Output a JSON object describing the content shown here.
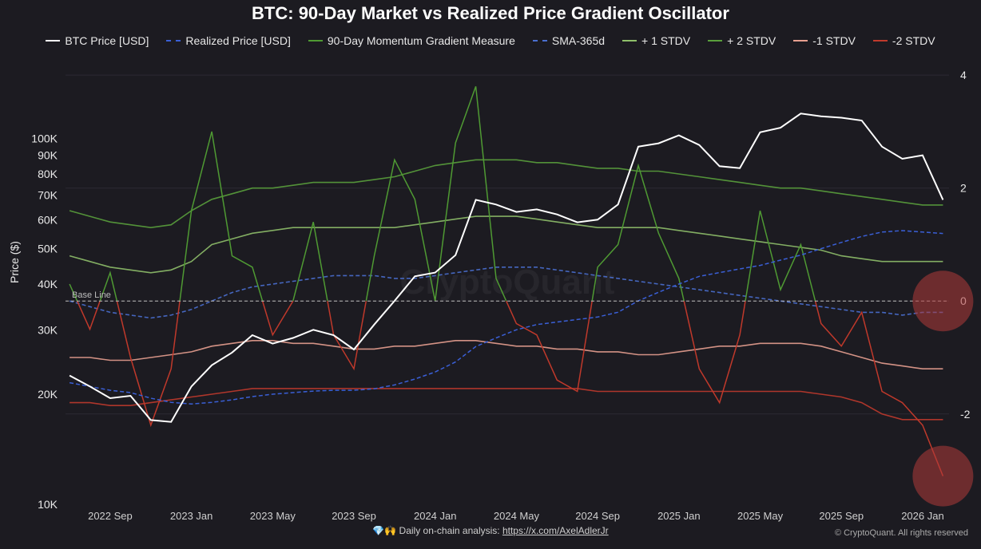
{
  "title": "BTC: 90-Day Market vs Realized Price Gradient Oscillator",
  "ylabel_left": "Price ($)",
  "baseline_label": "Base Line",
  "watermark": "CryptoQuant",
  "footer": {
    "prefix": "💎🙌 Daily on-chain analysis: ",
    "link": "https://x.com/AxelAdlerJr"
  },
  "copyright": "© CryptoQuant. All rights reserved",
  "colors": {
    "background": "#1c1b21",
    "btc": "#ffffff",
    "realized": "#3a5fd6",
    "momentum_pos": "#4f9a33",
    "momentum_neg": "#c0392b",
    "sma": "#4a6fd0",
    "plus1": "#8fbf6a",
    "plus2": "#5aa03c",
    "minus1": "#e8a090",
    "minus2": "#c03a2c",
    "highlight": "#b03a3a"
  },
  "chart_data": {
    "type": "line",
    "x_ticks": [
      "2022 Sep",
      "2023 Jan",
      "2023 May",
      "2023 Sep",
      "2024 Jan",
      "2024 May",
      "2024 Sep",
      "2025 Jan",
      "2025 May",
      "2025 Sep",
      "2026 Jan"
    ],
    "y_left": {
      "scale": "log",
      "range": [
        10000,
        160000
      ],
      "ticks": [
        "10K",
        "20K",
        "30K",
        "40K",
        "50K",
        "60K",
        "70K",
        "80K",
        "90K",
        "100K"
      ],
      "tick_values": [
        10000,
        20000,
        30000,
        40000,
        50000,
        60000,
        70000,
        80000,
        90000,
        100000
      ]
    },
    "y_right": {
      "range": [
        -3.6,
        4.2
      ],
      "ticks": [
        "4",
        "2",
        "0",
        "-2"
      ],
      "tick_values": [
        4,
        2,
        0,
        -2
      ]
    },
    "baseline_value": 0,
    "grid": true,
    "legend_position": "top",
    "months": [
      "2022-07",
      "2022-08",
      "2022-09",
      "2022-10",
      "2022-11",
      "2022-12",
      "2023-01",
      "2023-02",
      "2023-03",
      "2023-04",
      "2023-05",
      "2023-06",
      "2023-07",
      "2023-08",
      "2023-09",
      "2023-10",
      "2023-11",
      "2023-12",
      "2024-01",
      "2024-02",
      "2024-03",
      "2024-04",
      "2024-05",
      "2024-06",
      "2024-07",
      "2024-08",
      "2024-09",
      "2024-10",
      "2024-11",
      "2024-12",
      "2025-01",
      "2025-02",
      "2025-03",
      "2025-04",
      "2025-05",
      "2025-06",
      "2025-07",
      "2025-08",
      "2025-09",
      "2025-10",
      "2025-11",
      "2025-12",
      "2026-01",
      "2026-02"
    ],
    "series": [
      {
        "name": "BTC Price [USD]",
        "axis": "left",
        "style": "solid",
        "values": [
          22500,
          21000,
          19500,
          19800,
          17000,
          16800,
          21000,
          24000,
          26000,
          29000,
          27500,
          28500,
          30000,
          29000,
          26500,
          31000,
          36000,
          42000,
          43000,
          48000,
          68000,
          66000,
          63000,
          64000,
          62000,
          59000,
          60000,
          66000,
          95000,
          97000,
          102000,
          96000,
          84000,
          83000,
          104000,
          107000,
          117000,
          115000,
          114000,
          112000,
          95000,
          88000,
          90000,
          68000
        ]
      },
      {
        "name": "Realized Price [USD]",
        "axis": "left",
        "style": "dashed",
        "values": [
          21500,
          21000,
          20500,
          20200,
          19500,
          19000,
          18800,
          19000,
          19300,
          19700,
          20000,
          20200,
          20400,
          20500,
          20500,
          20700,
          21200,
          22000,
          23000,
          24500,
          27000,
          28500,
          30000,
          31000,
          31500,
          32000,
          32500,
          33500,
          36000,
          38000,
          40000,
          42000,
          43000,
          44000,
          45000,
          46500,
          48000,
          50000,
          52000,
          54000,
          55500,
          56000,
          55500,
          55000
        ]
      },
      {
        "name": "90-Day Momentum Gradient Measure",
        "axis": "right",
        "style": "solid",
        "values": [
          0.3,
          -0.5,
          0.5,
          -1.0,
          -2.2,
          -1.2,
          1.6,
          3.0,
          0.8,
          0.6,
          -0.6,
          0.0,
          1.4,
          -0.6,
          -1.2,
          0.8,
          2.5,
          1.8,
          0.0,
          2.8,
          3.8,
          0.4,
          -0.4,
          -0.6,
          -1.4,
          -1.6,
          0.6,
          1.0,
          2.4,
          1.2,
          0.4,
          -1.2,
          -1.8,
          -0.6,
          1.6,
          0.2,
          1.0,
          -0.4,
          -0.8,
          -0.2,
          -1.6,
          -1.8,
          -2.2,
          -3.1
        ]
      },
      {
        "name": "SMA-365d",
        "axis": "right",
        "style": "dashed",
        "values": [
          0.0,
          -0.1,
          -0.2,
          -0.25,
          -0.3,
          -0.25,
          -0.15,
          0.0,
          0.15,
          0.25,
          0.3,
          0.35,
          0.4,
          0.45,
          0.45,
          0.45,
          0.4,
          0.4,
          0.45,
          0.5,
          0.55,
          0.6,
          0.6,
          0.6,
          0.55,
          0.5,
          0.45,
          0.4,
          0.35,
          0.3,
          0.25,
          0.2,
          0.15,
          0.1,
          0.05,
          0.0,
          -0.05,
          -0.1,
          -0.15,
          -0.2,
          -0.2,
          -0.25,
          -0.2,
          -0.2
        ]
      },
      {
        "name": "+ 1 STDV",
        "axis": "right",
        "style": "solid",
        "values": [
          0.8,
          0.7,
          0.6,
          0.55,
          0.5,
          0.55,
          0.7,
          1.0,
          1.1,
          1.2,
          1.25,
          1.3,
          1.3,
          1.3,
          1.3,
          1.3,
          1.3,
          1.35,
          1.4,
          1.45,
          1.5,
          1.5,
          1.5,
          1.45,
          1.4,
          1.35,
          1.3,
          1.3,
          1.3,
          1.3,
          1.25,
          1.2,
          1.15,
          1.1,
          1.05,
          1.0,
          0.95,
          0.9,
          0.8,
          0.75,
          0.7,
          0.7,
          0.7,
          0.7
        ]
      },
      {
        "name": "+ 2 STDV",
        "axis": "right",
        "style": "solid",
        "values": [
          1.6,
          1.5,
          1.4,
          1.35,
          1.3,
          1.35,
          1.6,
          1.8,
          1.9,
          2.0,
          2.0,
          2.05,
          2.1,
          2.1,
          2.1,
          2.15,
          2.2,
          2.3,
          2.4,
          2.45,
          2.5,
          2.5,
          2.5,
          2.45,
          2.45,
          2.4,
          2.35,
          2.35,
          2.3,
          2.3,
          2.25,
          2.2,
          2.15,
          2.1,
          2.05,
          2.0,
          2.0,
          1.95,
          1.9,
          1.85,
          1.8,
          1.75,
          1.7,
          1.7
        ]
      },
      {
        "name": "-1 STDV",
        "axis": "right",
        "style": "solid",
        "values": [
          -1.0,
          -1.0,
          -1.05,
          -1.05,
          -1.0,
          -0.95,
          -0.9,
          -0.8,
          -0.75,
          -0.7,
          -0.7,
          -0.75,
          -0.75,
          -0.8,
          -0.85,
          -0.85,
          -0.8,
          -0.8,
          -0.75,
          -0.7,
          -0.7,
          -0.75,
          -0.8,
          -0.8,
          -0.85,
          -0.85,
          -0.9,
          -0.9,
          -0.95,
          -0.95,
          -0.9,
          -0.85,
          -0.8,
          -0.8,
          -0.75,
          -0.75,
          -0.75,
          -0.8,
          -0.9,
          -1.0,
          -1.1,
          -1.15,
          -1.2,
          -1.2
        ]
      },
      {
        "name": "-2 STDV",
        "axis": "right",
        "style": "solid",
        "values": [
          -1.8,
          -1.8,
          -1.85,
          -1.85,
          -1.8,
          -1.75,
          -1.7,
          -1.65,
          -1.6,
          -1.55,
          -1.55,
          -1.55,
          -1.55,
          -1.55,
          -1.55,
          -1.55,
          -1.55,
          -1.55,
          -1.55,
          -1.55,
          -1.55,
          -1.55,
          -1.55,
          -1.55,
          -1.55,
          -1.55,
          -1.6,
          -1.6,
          -1.6,
          -1.6,
          -1.6,
          -1.6,
          -1.6,
          -1.6,
          -1.6,
          -1.6,
          -1.6,
          -1.65,
          -1.7,
          -1.8,
          -2.0,
          -2.1,
          -2.1,
          -2.1
        ]
      }
    ],
    "highlights": [
      {
        "x": "2026-02",
        "y_right": 0
      },
      {
        "x": "2026-02",
        "y_right": -3.1
      }
    ]
  }
}
